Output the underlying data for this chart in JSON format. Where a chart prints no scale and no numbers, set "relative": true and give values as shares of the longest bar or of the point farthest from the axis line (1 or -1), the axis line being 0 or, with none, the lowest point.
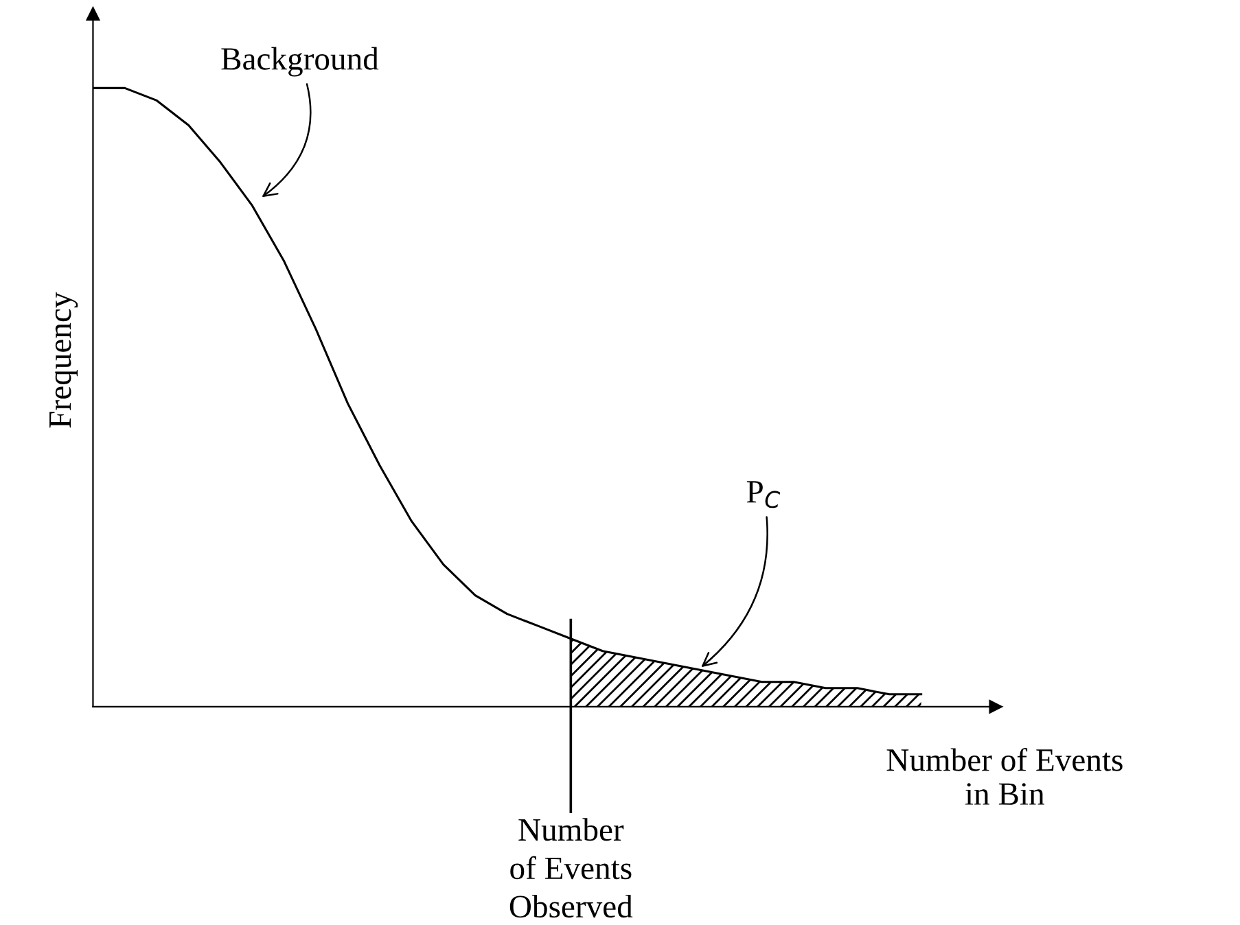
{
  "chart_data": {
    "type": "line",
    "relative": true,
    "xlabel": "Number of Events\nin Bin",
    "ylabel": "Frequency",
    "categories": [
      null,
      null,
      null,
      null,
      null,
      null,
      null,
      null,
      null,
      null,
      null,
      null,
      null,
      null,
      null,
      null,
      null,
      null,
      null,
      null,
      null,
      null,
      null,
      null,
      null,
      null,
      null
    ],
    "series": [
      {
        "color": "#000000",
        "values": [
          1.0,
          1.0,
          0.98,
          0.94,
          0.88,
          0.81,
          0.72,
          0.61,
          0.49,
          0.39,
          0.3,
          0.23,
          0.18,
          0.15,
          0.13,
          0.11,
          0.09,
          0.08,
          0.07,
          0.06,
          0.05,
          0.04,
          0.04,
          0.03,
          0.03,
          0.02,
          0.02
        ]
      },
      {
        "type": "area",
        "color": "#000000",
        "values": [
          null,
          null,
          null,
          null,
          null,
          null,
          null,
          null,
          null,
          null,
          null,
          null,
          null,
          null,
          null,
          0.11,
          0.09,
          0.08,
          0.07,
          0.06,
          0.05,
          0.04,
          0.04,
          0.03,
          0.03,
          0.02,
          0.02
        ]
      }
    ],
    "annotations": [
      "Background",
      "Number\nof Events\nObserved",
      "P$_{C}$"
    ],
    "grid": false,
    "legend": false,
    "marker": "none",
    "line_style": "solid"
  }
}
